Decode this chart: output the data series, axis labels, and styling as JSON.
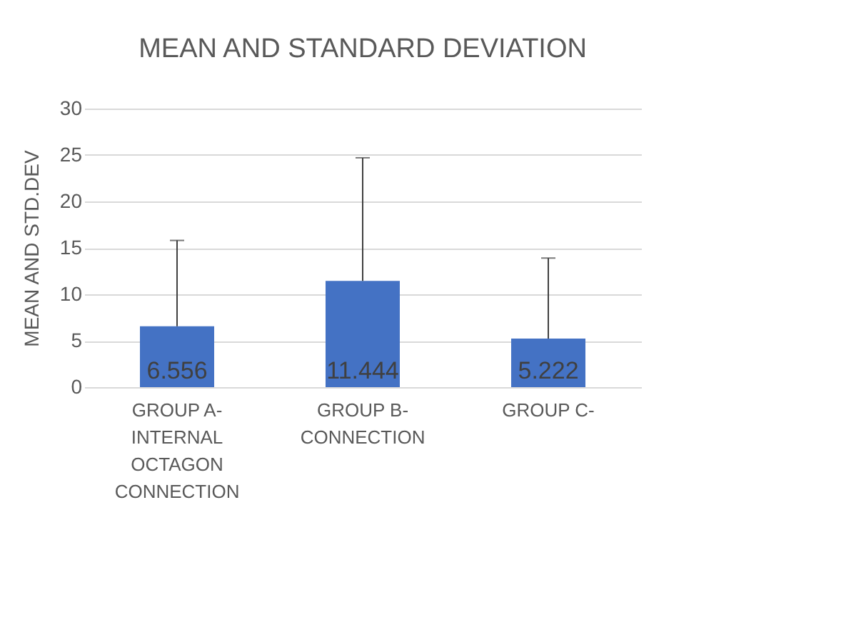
{
  "chart_data": {
    "type": "bar",
    "title": "MEAN AND STANDARD DEVIATION",
    "ylabel": "MEAN AND STD.DEV",
    "categories": [
      "GROUP A- INTERNAL OCTAGON CONNECTION",
      "GROUP B- CONNECTION",
      "GROUP C-"
    ],
    "values": [
      6.556,
      11.444,
      5.222
    ],
    "color": "#4472c4",
    "errors": [
      [
        6.556,
        15.8
      ],
      [
        11.444,
        24.7
      ],
      [
        5.222,
        13.9
      ]
    ],
    "ylim": [
      0,
      30
    ],
    "yticks": [
      0,
      5,
      10,
      15,
      20,
      25,
      30
    ],
    "grid": "y",
    "data_labels": true
  }
}
